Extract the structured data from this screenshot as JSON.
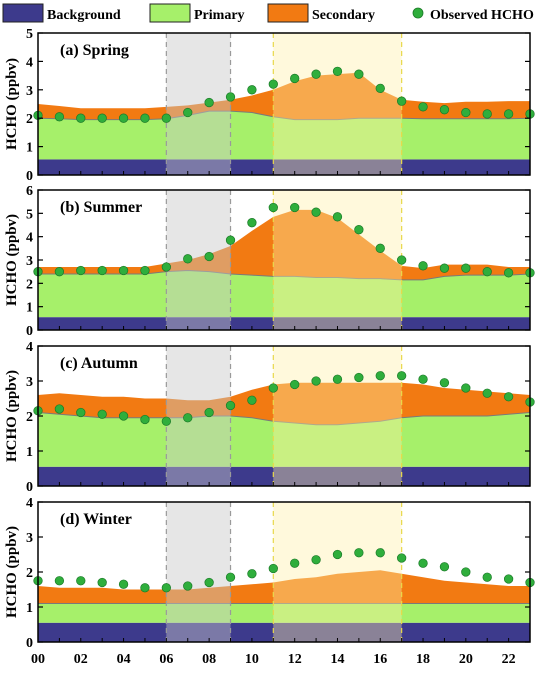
{
  "legend": [
    {
      "label": "Background",
      "color": "#3d3a8c",
      "kind": "box"
    },
    {
      "label": "Primary",
      "color": "#a6f06a",
      "kind": "box"
    },
    {
      "label": "Secondary",
      "color": "#f27a12",
      "kind": "box"
    },
    {
      "label": "Observed HCHO",
      "color": "#2fae3c",
      "kind": "dot"
    }
  ],
  "colors": {
    "background": "#3d3a8c",
    "primary": "#a6f06a",
    "secondary": "#f27a12",
    "observed": "#2fae3c",
    "morning_shade": "#c8c8c8",
    "midday_shade": "#fff0a8",
    "shade_border": "#9a9a9a",
    "midday_border": "#e8d84a"
  },
  "chart_data": {
    "type": "area",
    "shared_x": {
      "values": [
        0,
        1,
        2,
        3,
        4,
        5,
        6,
        7,
        8,
        9,
        10,
        11,
        12,
        13,
        14,
        15,
        16,
        17,
        18,
        19,
        20,
        21,
        22,
        23
      ],
      "tick_labels": [
        "00",
        "02",
        "04",
        "06",
        "08",
        "10",
        "12",
        "14",
        "16",
        "18",
        "20",
        "22"
      ],
      "tick_values": [
        0,
        2,
        4,
        6,
        8,
        10,
        12,
        14,
        16,
        18,
        20,
        22
      ],
      "xlim": [
        0,
        23
      ]
    },
    "shaded_periods": [
      {
        "name": "morning",
        "x_range": [
          6,
          9
        ]
      },
      {
        "name": "midday",
        "x_range": [
          11,
          17
        ]
      }
    ],
    "panels": [
      {
        "title": "(a) Spring",
        "ylabel": "HCHO (ppbv)",
        "ylim": [
          0,
          5
        ],
        "yticks": [
          0,
          1,
          2,
          3,
          4,
          5
        ],
        "series": [
          {
            "name": "Background",
            "values": [
              0.55,
              0.55,
              0.55,
              0.55,
              0.55,
              0.55,
              0.55,
              0.55,
              0.55,
              0.55,
              0.55,
              0.55,
              0.55,
              0.55,
              0.55,
              0.55,
              0.55,
              0.55,
              0.55,
              0.55,
              0.55,
              0.55,
              0.55,
              0.55
            ]
          },
          {
            "name": "Primary",
            "values": [
              2.0,
              1.98,
              1.95,
              1.95,
              1.95,
              1.95,
              1.98,
              2.1,
              2.25,
              2.25,
              2.2,
              2.05,
              1.95,
              1.95,
              1.95,
              2.0,
              2.0,
              2.0,
              1.98,
              1.98,
              1.98,
              1.98,
              1.98,
              2.0
            ]
          },
          {
            "name": "Secondary",
            "values": [
              0.5,
              0.45,
              0.4,
              0.4,
              0.4,
              0.4,
              0.42,
              0.35,
              0.3,
              0.4,
              0.6,
              0.95,
              1.35,
              1.55,
              1.6,
              1.6,
              1.0,
              0.65,
              0.6,
              0.55,
              0.6,
              0.6,
              0.62,
              0.6
            ]
          },
          {
            "name": "Observed HCHO",
            "values": [
              2.1,
              2.05,
              2.0,
              2.0,
              2.0,
              2.0,
              2.0,
              2.2,
              2.55,
              2.75,
              3.0,
              3.2,
              3.4,
              3.55,
              3.65,
              3.55,
              3.05,
              2.6,
              2.4,
              2.3,
              2.2,
              2.15,
              2.15,
              2.15
            ]
          }
        ]
      },
      {
        "title": "(b) Summer",
        "ylabel": "HCHO (ppbv)",
        "ylim": [
          0,
          6
        ],
        "yticks": [
          0,
          1,
          2,
          3,
          4,
          5,
          6
        ],
        "series": [
          {
            "name": "Background",
            "values": [
              0.55,
              0.55,
              0.55,
              0.55,
              0.55,
              0.55,
              0.55,
              0.55,
              0.55,
              0.55,
              0.55,
              0.55,
              0.55,
              0.55,
              0.55,
              0.55,
              0.55,
              0.55,
              0.55,
              0.55,
              0.55,
              0.55,
              0.55,
              0.55
            ]
          },
          {
            "name": "Primary",
            "values": [
              2.4,
              2.4,
              2.4,
              2.4,
              2.4,
              2.4,
              2.5,
              2.55,
              2.5,
              2.4,
              2.35,
              2.3,
              2.3,
              2.25,
              2.25,
              2.2,
              2.2,
              2.15,
              2.15,
              2.3,
              2.35,
              2.35,
              2.35,
              2.4
            ]
          },
          {
            "name": "Secondary",
            "values": [
              0.3,
              0.3,
              0.3,
              0.3,
              0.3,
              0.3,
              0.35,
              0.45,
              0.75,
              1.2,
              1.9,
              2.55,
              2.85,
              2.9,
              2.55,
              1.9,
              1.2,
              0.6,
              0.5,
              0.5,
              0.45,
              0.45,
              0.35,
              0.3
            ]
          },
          {
            "name": "Observed HCHO",
            "values": [
              2.5,
              2.5,
              2.55,
              2.55,
              2.55,
              2.55,
              2.7,
              3.05,
              3.15,
              3.85,
              4.6,
              5.25,
              5.25,
              5.05,
              4.85,
              4.3,
              3.5,
              3.0,
              2.75,
              2.65,
              2.65,
              2.5,
              2.45,
              2.45
            ]
          }
        ]
      },
      {
        "title": "(c) Autumn",
        "ylabel": "HCHO (ppbv)",
        "ylim": [
          0,
          4
        ],
        "yticks": [
          0,
          1,
          2,
          3,
          4
        ],
        "series": [
          {
            "name": "Background",
            "values": [
              0.55,
              0.55,
              0.55,
              0.55,
              0.55,
              0.55,
              0.55,
              0.55,
              0.55,
              0.55,
              0.55,
              0.55,
              0.55,
              0.55,
              0.55,
              0.55,
              0.55,
              0.55,
              0.55,
              0.55,
              0.55,
              0.55,
              0.55,
              0.55
            ]
          },
          {
            "name": "Primary",
            "values": [
              2.1,
              2.05,
              2.0,
              1.95,
              1.95,
              1.95,
              1.95,
              1.95,
              2.0,
              2.0,
              1.95,
              1.85,
              1.8,
              1.75,
              1.75,
              1.8,
              1.85,
              1.95,
              2.0,
              2.0,
              2.0,
              2.0,
              2.05,
              2.1
            ]
          },
          {
            "name": "Secondary",
            "values": [
              0.5,
              0.6,
              0.6,
              0.6,
              0.6,
              0.55,
              0.55,
              0.5,
              0.45,
              0.55,
              0.8,
              1.05,
              1.15,
              1.2,
              1.2,
              1.15,
              1.1,
              1.0,
              0.9,
              0.8,
              0.75,
              0.7,
              0.6,
              0.5
            ]
          },
          {
            "name": "Observed HCHO",
            "values": [
              2.15,
              2.2,
              2.1,
              2.05,
              2.0,
              1.9,
              1.85,
              1.95,
              2.1,
              2.3,
              2.45,
              2.8,
              2.9,
              3.0,
              3.05,
              3.1,
              3.15,
              3.15,
              3.05,
              2.95,
              2.8,
              2.65,
              2.55,
              2.4
            ]
          }
        ]
      },
      {
        "title": "(d) Winter",
        "ylabel": "HCHO (ppbv)",
        "ylim": [
          0,
          4
        ],
        "yticks": [
          0,
          1,
          2,
          3,
          4
        ],
        "series": [
          {
            "name": "Background",
            "values": [
              0.55,
              0.55,
              0.55,
              0.55,
              0.55,
              0.55,
              0.55,
              0.55,
              0.55,
              0.55,
              0.55,
              0.55,
              0.55,
              0.55,
              0.55,
              0.55,
              0.55,
              0.55,
              0.55,
              0.55,
              0.55,
              0.55,
              0.55,
              0.55
            ]
          },
          {
            "name": "Primary",
            "values": [
              1.1,
              1.1,
              1.1,
              1.1,
              1.1,
              1.1,
              1.1,
              1.1,
              1.1,
              1.1,
              1.1,
              1.1,
              1.1,
              1.1,
              1.1,
              1.1,
              1.1,
              1.1,
              1.1,
              1.1,
              1.1,
              1.1,
              1.1,
              1.1
            ]
          },
          {
            "name": "Secondary",
            "values": [
              0.5,
              0.45,
              0.45,
              0.45,
              0.4,
              0.4,
              0.4,
              0.4,
              0.45,
              0.5,
              0.55,
              0.6,
              0.7,
              0.75,
              0.85,
              0.9,
              0.95,
              0.85,
              0.75,
              0.65,
              0.6,
              0.55,
              0.5,
              0.5
            ]
          },
          {
            "name": "Observed HCHO",
            "values": [
              1.75,
              1.75,
              1.75,
              1.7,
              1.65,
              1.55,
              1.55,
              1.6,
              1.7,
              1.85,
              1.95,
              2.1,
              2.25,
              2.35,
              2.5,
              2.55,
              2.55,
              2.4,
              2.25,
              2.15,
              2.0,
              1.85,
              1.8,
              1.7
            ]
          }
        ]
      }
    ]
  }
}
